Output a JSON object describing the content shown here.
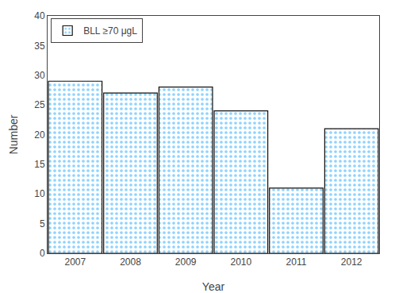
{
  "chart_data": {
    "type": "bar",
    "x": [
      2007,
      2008,
      2009,
      2010,
      2011,
      2012
    ],
    "series": [
      {
        "name": "BLL ≥70 μgL",
        "color": "#1a6fbe",
        "values": [
          29,
          27,
          28,
          24,
          11,
          21
        ]
      }
    ],
    "xlabel": "Year",
    "ylabel": "Number",
    "xlim": [
      2006.5,
      2012.5
    ],
    "xticks": [
      2007,
      2008,
      2009,
      2010,
      2011,
      2012
    ],
    "ylim": [
      0,
      40
    ],
    "yticks": [
      0,
      5,
      10,
      15,
      20,
      25,
      30,
      35,
      40
    ],
    "grid": false,
    "legend": "upper left"
  }
}
